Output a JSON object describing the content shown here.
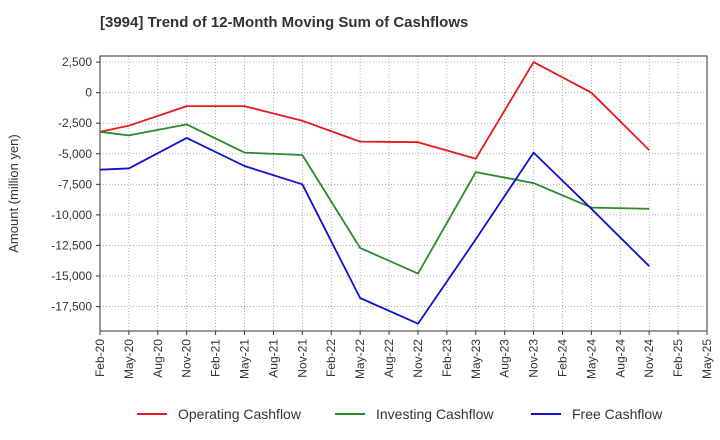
{
  "chart_data": {
    "type": "line",
    "title": "[3994]  Trend of 12-Month Moving Sum of Cashflows",
    "xlabel": "",
    "ylabel": "Amount (million yen)",
    "categories": [
      "Feb-20",
      "May-20",
      "Aug-20",
      "Nov-20",
      "Feb-21",
      "May-21",
      "Aug-21",
      "Nov-21",
      "Feb-22",
      "May-22",
      "Aug-22",
      "Nov-22",
      "Feb-23",
      "May-23",
      "Aug-23",
      "Nov-23",
      "Feb-24",
      "May-24",
      "Aug-24",
      "Nov-24",
      "Feb-25",
      "May-25"
    ],
    "ylim": [
      -19500,
      3000
    ],
    "yticks": [
      2500,
      0,
      -2500,
      -5000,
      -7500,
      -10000,
      -12500,
      -15000,
      -17500
    ],
    "ytick_labels": [
      "2,500",
      "0",
      "-2,500",
      "-5,000",
      "-7,500",
      "-10,000",
      "-12,500",
      "-15,000",
      "-17,500"
    ],
    "grid": true,
    "legend_position": "bottom",
    "series": [
      {
        "name": "Operating Cashflow",
        "color": "#e8191a",
        "values": [
          -3200,
          -2700,
          null,
          -1100,
          null,
          -1100,
          null,
          -2300,
          null,
          -4000,
          null,
          -4050,
          null,
          -5400,
          null,
          2500,
          null,
          0,
          null,
          -4700,
          null,
          null
        ]
      },
      {
        "name": "Investing Cashflow",
        "color": "#2b8a2b",
        "values": [
          -3200,
          -3500,
          null,
          -2600,
          null,
          -4900,
          null,
          -5100,
          null,
          -12700,
          null,
          -14800,
          null,
          -6500,
          null,
          -7400,
          null,
          -9400,
          null,
          -9500,
          null,
          null
        ]
      },
      {
        "name": "Free Cashflow",
        "color": "#1010d0",
        "values": [
          -6300,
          -6200,
          null,
          -3700,
          null,
          -6000,
          null,
          -7500,
          null,
          -16800,
          null,
          -18900,
          null,
          -12000,
          null,
          -4900,
          null,
          -9500,
          null,
          -14200,
          null,
          null
        ]
      }
    ]
  }
}
